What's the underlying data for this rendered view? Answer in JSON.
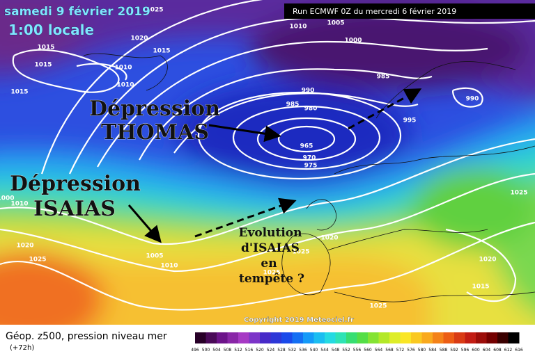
{
  "header": {
    "date": "samedi 9 février 2019",
    "time": "1:00 locale",
    "run": "Run ECMWF 0Z du mercredi 6 février 2019"
  },
  "annotations": {
    "thomas": [
      "Dépression",
      "THOMAS"
    ],
    "isaias": [
      "Dépression",
      "ISAIAS"
    ],
    "evolution": [
      "Evolution",
      "d'ISAIAS",
      "en",
      "tempête ?"
    ]
  },
  "isobar_labels": [
    "1025",
    "1010",
    "1005",
    "1000",
    "1020",
    "1015",
    "1015",
    "1010",
    "1015",
    "1010",
    "1015",
    "985",
    "990",
    "985",
    "980",
    "990",
    "995",
    "965",
    "970",
    "975",
    "1025",
    "1000",
    "1010",
    "1020",
    "1025",
    "1005",
    "1010",
    "1020",
    "1025",
    "1025",
    "1020",
    "1015",
    "1025"
  ],
  "footer": {
    "title": "Géop. z500, pression niveau mer",
    "lead": "(+72h)",
    "copyright": "Copyright 2019 Meteociel.fr"
  },
  "colorbar": {
    "labels": [
      496,
      500,
      504,
      508,
      512,
      516,
      520,
      524,
      528,
      532,
      536,
      540,
      544,
      548,
      552,
      556,
      560,
      564,
      568,
      572,
      576,
      580,
      584,
      588,
      592,
      596,
      600,
      604,
      608,
      612,
      616
    ]
  }
}
